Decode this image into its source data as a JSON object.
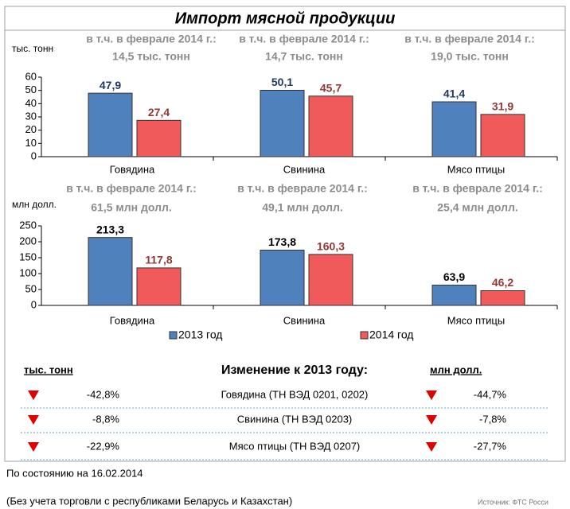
{
  "title": "Импорт мясной продукции",
  "chart_data": [
    {
      "type": "bar",
      "y_label": "тыс. тонн",
      "categories": [
        "Говядина",
        "Свинина",
        "Мясо птицы"
      ],
      "annotations": [
        [
          "в т.ч. в феврале 2014 г.:",
          "14,5 тыс. тонн"
        ],
        [
          "в т.ч. в феврале 2014 г.:",
          "14,7 тыс. тонн"
        ],
        [
          "в т.ч. в феврале 2014 г.:",
          "19,0 тыс. тонн"
        ]
      ],
      "series": [
        {
          "color": "#4f81bd",
          "label_color": "#1f3864",
          "values": [
            47.9,
            50.1,
            41.4
          ],
          "value_labels": [
            "47,9",
            "50,1",
            "41,4"
          ]
        },
        {
          "color": "#f05a5a",
          "label_color": "#953735",
          "values": [
            27.4,
            45.7,
            31.9
          ],
          "value_labels": [
            "27,4",
            "45,7",
            "31,9"
          ]
        }
      ],
      "ylim": [
        0,
        60
      ],
      "yticks": [
        0,
        10,
        20,
        30,
        40,
        50,
        60
      ]
    },
    {
      "type": "bar",
      "y_label": "млн долл.",
      "categories": [
        "Говядина",
        "Свинина",
        "Мясо птицы"
      ],
      "annotations": [
        [
          "в т.ч. в феврале 2014 г.:",
          "61,5 млн долл."
        ],
        [
          "в т.ч. в феврале 2014 г.:",
          "49,1 млн долл."
        ],
        [
          "в т.ч. в феврале 2014 г.:",
          "25,4 млн долл."
        ]
      ],
      "series": [
        {
          "name": "2013 год",
          "color": "#4f81bd",
          "label_color": "#000000",
          "values": [
            213.3,
            173.8,
            63.9
          ],
          "value_labels": [
            "213,3",
            "173,8",
            "63,9"
          ]
        },
        {
          "name": "2014 год",
          "color": "#f05a5a",
          "label_color": "#953735",
          "values": [
            117.8,
            160.3,
            46.2
          ],
          "value_labels": [
            "117,8",
            "160,3",
            "46,2"
          ]
        }
      ],
      "ylim": [
        0,
        250
      ],
      "yticks": [
        0,
        50,
        100,
        150,
        200,
        250
      ],
      "legend": "bottom"
    }
  ],
  "table": {
    "left_header": "тыс. тонн",
    "title": "Изменение к 2013 году:",
    "right_header": "млн долл.",
    "rows": [
      [
        "-42,8%",
        "Говядина (ТН ВЭД 0201, 0202)",
        "-44,7%"
      ],
      [
        "-8,8%",
        "Свинина (ТН ВЭД 0203)",
        "-7,8%"
      ],
      [
        "-22,9%",
        "Мясо птицы (ТН ВЭД 0207)",
        "-27,7%"
      ]
    ]
  },
  "footer": {
    "date": "По состоянию на  16.02.2014",
    "note": "(Без учета торговли с республиками Беларусь и Казахстан)",
    "source": "Источник: ФТС Росси"
  }
}
